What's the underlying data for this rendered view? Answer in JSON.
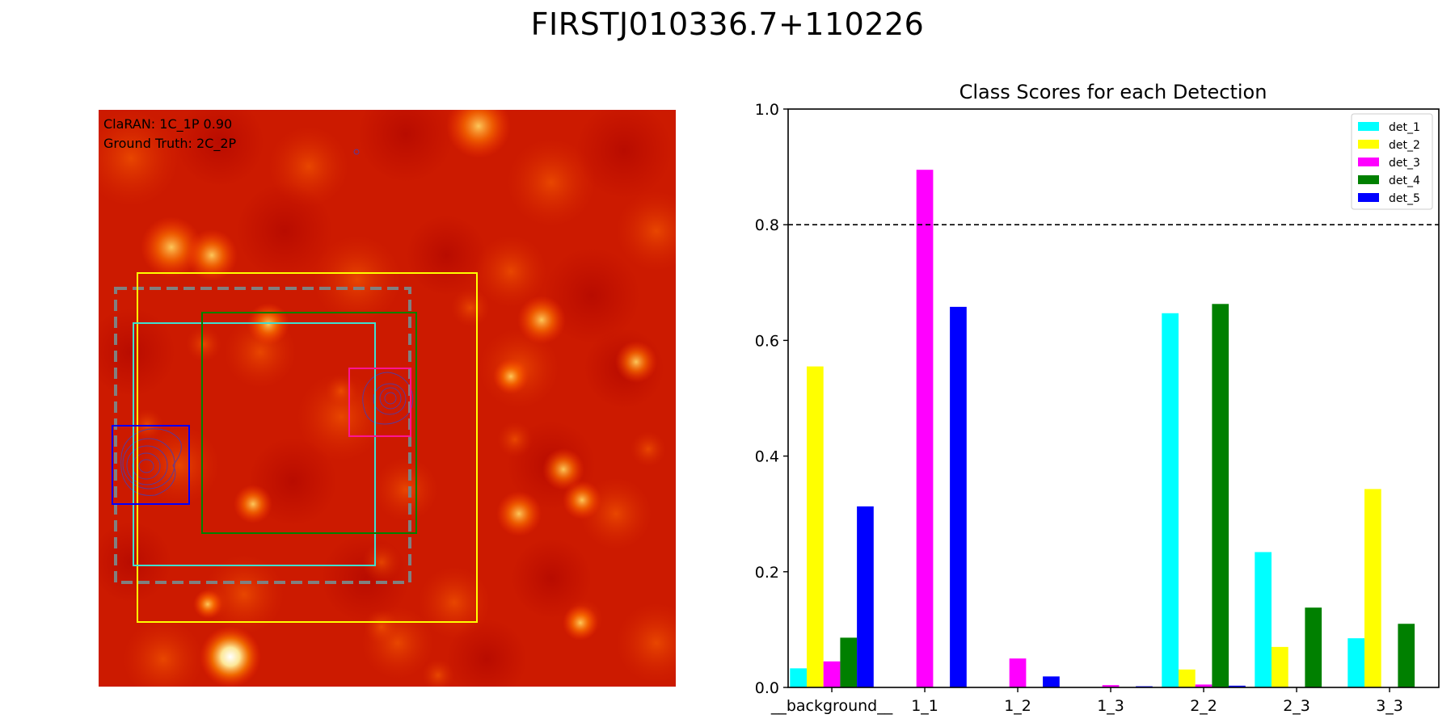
{
  "figure": {
    "title": "FIRSTJ010336.7+110226"
  },
  "image_panel": {
    "prediction_text": "ClaRAN: 1C_1P 0.90",
    "ground_truth_text": "Ground Truth: 2C_2P",
    "colors": {
      "background": "#cc1a00",
      "det_1": "#40e0d0",
      "det_2": "#ffff00",
      "det_3": "#ff1493",
      "det_4": "#008000",
      "det_5": "#0000ff",
      "ground_truth": "#808080",
      "contour": "#5a3a9a"
    }
  },
  "chart_data": {
    "type": "bar",
    "title": "Class Scores for each Detection",
    "xlabel": "",
    "ylabel": "",
    "categories": [
      "__background__",
      "1_1",
      "1_2",
      "1_3",
      "2_2",
      "2_3",
      "3_3"
    ],
    "series": [
      {
        "name": "det_1",
        "color": "#00ffff",
        "values": [
          0.033,
          0.0,
          0.0,
          0.0,
          0.647,
          0.234,
          0.085
        ]
      },
      {
        "name": "det_2",
        "color": "#ffff00",
        "values": [
          0.555,
          0.0,
          0.0,
          0.0,
          0.031,
          0.07,
          0.343
        ]
      },
      {
        "name": "det_3",
        "color": "#ff00ff",
        "values": [
          0.045,
          0.895,
          0.05,
          0.004,
          0.005,
          0.0,
          0.0
        ]
      },
      {
        "name": "det_4",
        "color": "#008000",
        "values": [
          0.086,
          0.0,
          0.0,
          0.0,
          0.663,
          0.138,
          0.11
        ]
      },
      {
        "name": "det_5",
        "color": "#0000ff",
        "values": [
          0.313,
          0.658,
          0.019,
          0.002,
          0.003,
          0.0,
          0.0
        ]
      }
    ],
    "ylim": [
      0,
      1.0
    ],
    "yticks": [
      "0.0",
      "0.2",
      "0.4",
      "0.6",
      "0.8",
      "1.0"
    ],
    "threshold": 0.8,
    "legend_position": "top-right",
    "grid": false
  }
}
